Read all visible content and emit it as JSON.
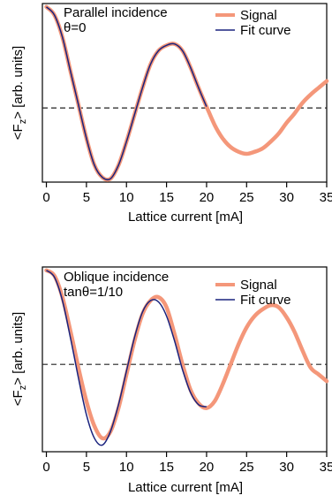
{
  "chart_data": [
    {
      "type": "line",
      "annotation_line1": "Parallel incidence",
      "annotation_line2": "θ=0",
      "xlabel": "Lattice current [mA]",
      "ylabel_prefix": "<F",
      "ylabel_sub": "z",
      "ylabel_suffix": "> [arb. units]",
      "xlim": [
        -0.5,
        35
      ],
      "ylim": [
        -1.1,
        1.55
      ],
      "xticks": [
        0,
        5,
        10,
        15,
        20,
        25,
        30,
        35
      ],
      "legend_position": "top-right",
      "grid": false,
      "reference_line": {
        "y": 0,
        "style": "dashed"
      },
      "series": [
        {
          "name": "Signal",
          "color": "#f4977a",
          "x": [
            0,
            1,
            2,
            3,
            4,
            5,
            6,
            7,
            8,
            9,
            10,
            11,
            12,
            13,
            14,
            15,
            16,
            17,
            18,
            19,
            20,
            21,
            22,
            23,
            24,
            25,
            26,
            27,
            28,
            29,
            30,
            31,
            32,
            33,
            34,
            35
          ],
          "values": [
            1.5,
            1.38,
            1.05,
            0.55,
            0.05,
            -0.45,
            -0.85,
            -1.03,
            -1.05,
            -0.85,
            -0.5,
            -0.1,
            0.3,
            0.65,
            0.85,
            0.93,
            0.95,
            0.85,
            0.6,
            0.3,
            0.02,
            -0.25,
            -0.45,
            -0.58,
            -0.65,
            -0.68,
            -0.65,
            -0.6,
            -0.5,
            -0.38,
            -0.22,
            -0.08,
            0.08,
            0.2,
            0.3,
            0.4
          ]
        },
        {
          "name": "Fit curve",
          "color": "#1a237e",
          "x": [
            0,
            1,
            2,
            3,
            4,
            5,
            6,
            7,
            8,
            9,
            10,
            11,
            12,
            13,
            14,
            15,
            16,
            17,
            18,
            19,
            20
          ],
          "values": [
            1.5,
            1.38,
            1.05,
            0.55,
            0.05,
            -0.45,
            -0.85,
            -1.03,
            -1.05,
            -0.85,
            -0.5,
            -0.1,
            0.3,
            0.65,
            0.85,
            0.93,
            0.95,
            0.85,
            0.6,
            0.3,
            0.02
          ]
        }
      ]
    },
    {
      "type": "line",
      "annotation_line1": "Oblique incidence",
      "annotation_line2": "tanθ=1/10",
      "xlabel": "Lattice current [mA]",
      "ylabel_prefix": "<F",
      "ylabel_sub": "z",
      "ylabel_suffix": "> [arb. units]",
      "xlim": [
        -0.5,
        35
      ],
      "ylim": [
        -1.3,
        1.45
      ],
      "xticks": [
        0,
        5,
        10,
        15,
        20,
        25,
        30,
        35
      ],
      "legend_position": "top-right",
      "grid": false,
      "reference_line": {
        "y": 0,
        "style": "dashed"
      },
      "series": [
        {
          "name": "Signal",
          "color": "#f4977a",
          "x": [
            0,
            1,
            2,
            3,
            4,
            5,
            6,
            7,
            8,
            9,
            10,
            11,
            12,
            13,
            14,
            15,
            16,
            17,
            18,
            19,
            20,
            21,
            22,
            23,
            24,
            25,
            26,
            27,
            28,
            29,
            30,
            31,
            32,
            33,
            34,
            35
          ],
          "values": [
            1.4,
            1.32,
            1.0,
            0.5,
            -0.05,
            -0.55,
            -0.92,
            -1.1,
            -1.0,
            -0.65,
            -0.15,
            0.35,
            0.75,
            0.95,
            1.0,
            0.85,
            0.45,
            0.0,
            -0.38,
            -0.58,
            -0.65,
            -0.55,
            -0.3,
            0.0,
            0.3,
            0.55,
            0.72,
            0.82,
            0.88,
            0.85,
            0.7,
            0.48,
            0.2,
            -0.05,
            -0.15,
            -0.25
          ]
        },
        {
          "name": "Fit curve",
          "color": "#1a237e",
          "x": [
            0,
            1,
            2,
            3,
            4,
            5,
            6,
            7,
            8,
            9,
            10,
            11,
            12,
            13,
            14,
            15,
            16,
            17,
            18,
            19,
            20
          ],
          "values": [
            1.4,
            1.3,
            0.95,
            0.4,
            -0.2,
            -0.75,
            -1.1,
            -1.2,
            -1.0,
            -0.6,
            -0.1,
            0.4,
            0.78,
            0.95,
            0.93,
            0.72,
            0.35,
            -0.08,
            -0.42,
            -0.6,
            -0.63
          ]
        }
      ]
    }
  ]
}
